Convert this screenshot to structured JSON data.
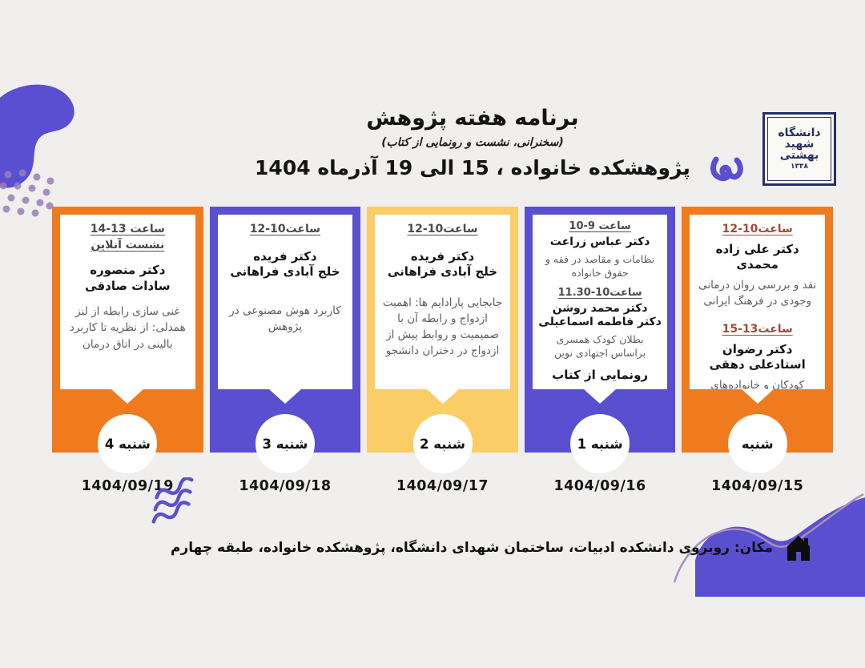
{
  "colors": {
    "orange": "#F07A1E",
    "purple": "#5A4FD0",
    "yellow": "#FACD66",
    "background": "#F0EFED",
    "time_default": "#4D4A47",
    "time_accent": "#9D4A39",
    "body_text": "#5D5D5D",
    "name_text": "#151515",
    "logo_navy": "#252E66"
  },
  "header": {
    "title": "برنامه هفته پژوهش",
    "subtitle": "(سخنرانی، نشست و رونمایی از کتاب)",
    "date_line": "پژوهشکده خانواده ، 15 الی 19 آذرماه 1404",
    "logo": {
      "line1": "دانشگاه",
      "line2": "شهید",
      "line3": "بهشتی",
      "year": "۱۳۳۸"
    }
  },
  "cards": [
    {
      "theme": "orange",
      "day": "شنبه",
      "date": "1404/09/15",
      "time_color": "#9D4A39",
      "sessions": [
        {
          "times": [
            "ساعت10-12"
          ],
          "speakers": [
            "دکتر علی زاده محمدی"
          ],
          "topic": "نقد و بررسی روان درمانی وجودی در فرهنگ ایرانی"
        },
        {
          "times": [
            "ساعت13-15"
          ],
          "speakers": [
            "دکتر رضوان استادعلی دهقی"
          ],
          "topic": "کودکان و خانواده‌های آسیب‌پذیر"
        }
      ]
    },
    {
      "theme": "purple",
      "day": "1 شنبه",
      "date": "1404/09/16",
      "sessions": [
        {
          "times": [
            "ساعت 9-10"
          ],
          "speakers": [
            "دکتر عباس زراعت"
          ],
          "topic": "نظامات و مقاصد در فقه و حقوق خانواده"
        },
        {
          "times": [
            "ساعت10-11.30"
          ],
          "speakers": [
            "دکتر محمد روشن",
            "دکتر فاطمه اسماعیلی"
          ],
          "topic": "بطلان کودک همسری براساس اجتهادی نوین",
          "note": "رونمایی از کتاب"
        }
      ]
    },
    {
      "theme": "yellow",
      "day": "2 شنبه",
      "date": "1404/09/17",
      "sessions": [
        {
          "times": [
            "ساعت10-12"
          ],
          "speakers": [
            "دکتر فریده",
            "خلج آبادی فراهانی"
          ],
          "topic": "جابجایی پارادایم ها: اهمیت ازدواج و رابطه آن با صمیمیت و روابط پیش از ازدواج در دختران دانشجو"
        }
      ]
    },
    {
      "theme": "purple",
      "day": "3 شنبه",
      "date": "1404/09/18",
      "sessions": [
        {
          "times": [
            "ساعت10-12"
          ],
          "speakers": [
            "دکتر فریده",
            "خلج آبادی فراهانی"
          ],
          "topic": "کاربرد هوش مصنوعی در پژوهش"
        }
      ]
    },
    {
      "theme": "orange",
      "day": "4 شنبه",
      "date": "1404/09/19",
      "sessions": [
        {
          "times": [
            "ساعت 13-14",
            "نشست آنلاین"
          ],
          "speakers": [
            "دکتر منصوره",
            "سادات صادقی"
          ],
          "topic": "غنی سازی رابطه از لنز همدلی: از نظریه تا کاربرد بالینی در اتاق درمان"
        }
      ]
    }
  ],
  "footer": {
    "location": "مکان: روبروی دانشکده ادبیات، ساختمان شهدای دانشگاه، پژوهشکده خانواده، طبقه چهارم"
  }
}
